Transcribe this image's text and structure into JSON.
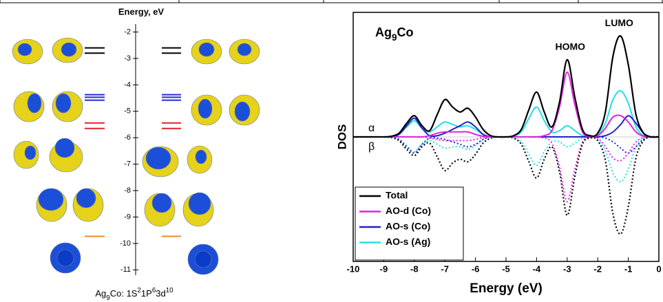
{
  "chart_data": [
    {
      "type": "levels",
      "axis_label": "Energy, eV",
      "caption_parts": [
        "Ag",
        "9",
        "Co: 1S",
        "2",
        "1P",
        "6",
        "3d",
        "10"
      ],
      "ylim": [
        -11.2,
        -1.7
      ],
      "yticks": [
        -2,
        -3,
        -4,
        -5,
        -6,
        -7,
        -8,
        -9,
        -10,
        -11
      ],
      "series": [
        {
          "color": "#000000",
          "values": [
            -2.6,
            -2.8
          ]
        },
        {
          "color": "#1f2fd0",
          "values": [
            -4.37,
            -4.47,
            -4.58
          ]
        },
        {
          "color": "#e0202a",
          "values": [
            -5.44,
            -5.65
          ]
        },
        {
          "color": "#f08a24",
          "values": [
            -9.73
          ]
        }
      ]
    },
    {
      "type": "dos",
      "title_parts": [
        "Ag",
        "9",
        "Co"
      ],
      "xlabel": "Energy (eV)",
      "ylabel": "DOS",
      "annotations": [
        {
          "text": "HOMO",
          "x": -2.9
        },
        {
          "text": "LUMO",
          "x": -1.3
        }
      ],
      "alpha_label": "α",
      "beta_label": "β",
      "xlim": [
        -10,
        0
      ],
      "ylim": [
        -10,
        10
      ],
      "xticks": [
        -10,
        -9,
        -8,
        -7,
        -6,
        -5,
        -4,
        -3,
        -2,
        -1,
        0
      ],
      "legend": "lower left",
      "x": [
        -10,
        -9.75,
        -9.5,
        -9.25,
        -9,
        -8.75,
        -8.5,
        -8.25,
        -8,
        -7.75,
        -7.5,
        -7.25,
        -7,
        -6.75,
        -6.5,
        -6.25,
        -6,
        -5.75,
        -5.5,
        -5.25,
        -5,
        -4.75,
        -4.5,
        -4.25,
        -4,
        -3.75,
        -3.5,
        -3.25,
        -3,
        -2.75,
        -2.5,
        -2.25,
        -2,
        -1.75,
        -1.5,
        -1.25,
        -1,
        -0.75,
        -0.5,
        -0.25,
        0
      ],
      "series": [
        {
          "name": "Total",
          "color": "#000000",
          "alpha": [
            0,
            0,
            0,
            0,
            0,
            0.05,
            0.3,
            1.1,
            1.7,
            0.9,
            0.5,
            1.8,
            3.0,
            2.4,
            2.0,
            2.3,
            1.6,
            0.6,
            0.1,
            0,
            0,
            0.1,
            0.6,
            2.2,
            3.6,
            2.0,
            0.8,
            2.8,
            6.2,
            3.2,
            0.6,
            0.1,
            0.3,
            2.0,
            6.5,
            8.1,
            5.8,
            1.8,
            0.3,
            0,
            0
          ],
          "beta": [
            0,
            0,
            0,
            0,
            0,
            -0.05,
            -0.3,
            -1.0,
            -1.5,
            -0.8,
            -0.5,
            -1.6,
            -2.7,
            -2.1,
            -1.8,
            -2.0,
            -1.4,
            -0.5,
            -0.1,
            0,
            0,
            -0.1,
            -0.6,
            -2.0,
            -3.3,
            -1.8,
            -0.8,
            -2.8,
            -6.3,
            -3.2,
            -0.6,
            -0.1,
            -0.3,
            -1.9,
            -6.2,
            -7.8,
            -5.6,
            -1.7,
            -0.3,
            0,
            0
          ]
        },
        {
          "name": "AO-d (Co)",
          "color": "#e020e0",
          "alpha": [
            0,
            0,
            0,
            0,
            0,
            0,
            0,
            0,
            0,
            0,
            0.1,
            0.3,
            0.4,
            0.4,
            0.4,
            0.4,
            0.2,
            0.05,
            0,
            0,
            0,
            0,
            0,
            0,
            0,
            0.1,
            0.5,
            2.4,
            5.2,
            2.6,
            0.4,
            0.05,
            0.1,
            0.7,
            1.6,
            1.7,
            1.2,
            0.4,
            0.05,
            0,
            0
          ],
          "beta": [
            0,
            0,
            0,
            0,
            0,
            0,
            0,
            0,
            0,
            0,
            -0.1,
            -0.2,
            -0.3,
            -0.3,
            -0.3,
            -0.3,
            -0.2,
            -0.05,
            0,
            0,
            0,
            0,
            0,
            0,
            0,
            -0.1,
            -0.5,
            -2.4,
            -5.2,
            -2.6,
            -0.4,
            -0.05,
            -0.1,
            -0.8,
            -1.7,
            -1.9,
            -1.3,
            -0.4,
            -0.05,
            0,
            0
          ]
        },
        {
          "name": "AO-s (Co)",
          "color": "#2020c8",
          "alpha": [
            0,
            0,
            0,
            0,
            0,
            0,
            0.2,
            0.9,
            1.5,
            0.7,
            0.1,
            0.1,
            0.3,
            0.6,
            0.9,
            1.2,
            0.8,
            0.2,
            0,
            0,
            0,
            0,
            0,
            0,
            0,
            0,
            0,
            0,
            0,
            0,
            0,
            0,
            0,
            0.1,
            0.4,
            1.0,
            1.7,
            1.1,
            0.3,
            0,
            0
          ],
          "beta": [
            0,
            0,
            0,
            0,
            0,
            0,
            -0.2,
            -0.8,
            -1.3,
            -0.6,
            -0.1,
            -0.1,
            -0.2,
            -0.4,
            -0.6,
            -0.8,
            -0.6,
            -0.2,
            0,
            0,
            0,
            0,
            0,
            0,
            0,
            0,
            0,
            0,
            0,
            0,
            0,
            0,
            0,
            -0.1,
            -0.4,
            -0.9,
            -1.3,
            -0.8,
            -0.2,
            0,
            0
          ]
        },
        {
          "name": "AO-s (Ag)",
          "color": "#20e0e8",
          "alpha": [
            0,
            0,
            0,
            0,
            0,
            0,
            0.2,
            0.8,
            1.3,
            0.7,
            0.4,
            0.8,
            1.2,
            1.0,
            0.8,
            0.9,
            0.6,
            0.2,
            0,
            0,
            0,
            0.05,
            0.4,
            1.5,
            2.4,
            1.3,
            0.4,
            0.5,
            0.9,
            0.5,
            0.1,
            0,
            0.2,
            1.1,
            3.0,
            3.7,
            2.7,
            0.8,
            0.1,
            0,
            0
          ],
          "beta": [
            0,
            0,
            0,
            0,
            0,
            0,
            -0.2,
            -0.7,
            -1.2,
            -0.6,
            -0.3,
            -0.6,
            -0.9,
            -0.8,
            -0.8,
            -1.0,
            -0.7,
            -0.2,
            0,
            0,
            0,
            -0.05,
            -0.4,
            -1.4,
            -2.3,
            -1.2,
            -0.4,
            -0.4,
            -0.8,
            -0.5,
            -0.1,
            0,
            -0.2,
            -1.1,
            -2.9,
            -3.6,
            -2.6,
            -0.8,
            -0.1,
            0,
            0
          ]
        }
      ]
    }
  ]
}
